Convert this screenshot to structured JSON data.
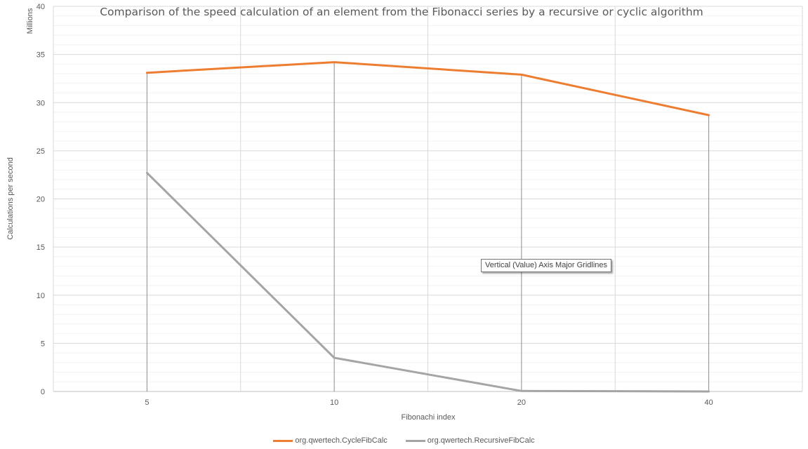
{
  "chart_data": {
    "type": "line",
    "title": "Comparison of the speed calculation of an element from the Fibonacci series by a recursive or cyclic algorithm",
    "xlabel": "Fibonachi index",
    "ylabel": "Calculations per second",
    "y_unit_label": "Millions",
    "categories": [
      "5",
      "10",
      "20",
      "40"
    ],
    "series": [
      {
        "name": "org.qwertech.CycleFibCalc",
        "color": "#ed7d31",
        "values": [
          33.1,
          34.2,
          32.9,
          28.7
        ]
      },
      {
        "name": "org.qwertech.RecursiveFibCalc",
        "color": "#a5a5a5",
        "values": [
          22.7,
          3.5,
          0.05,
          0.0
        ]
      }
    ],
    "ylim": [
      0,
      40
    ],
    "y_ticks": [
      "0",
      "5",
      "10",
      "15",
      "20",
      "25",
      "30",
      "35",
      "40"
    ],
    "grid": true,
    "legend_position": "bottom"
  },
  "tooltip": {
    "text": "Vertical (Value) Axis Major Gridlines"
  }
}
